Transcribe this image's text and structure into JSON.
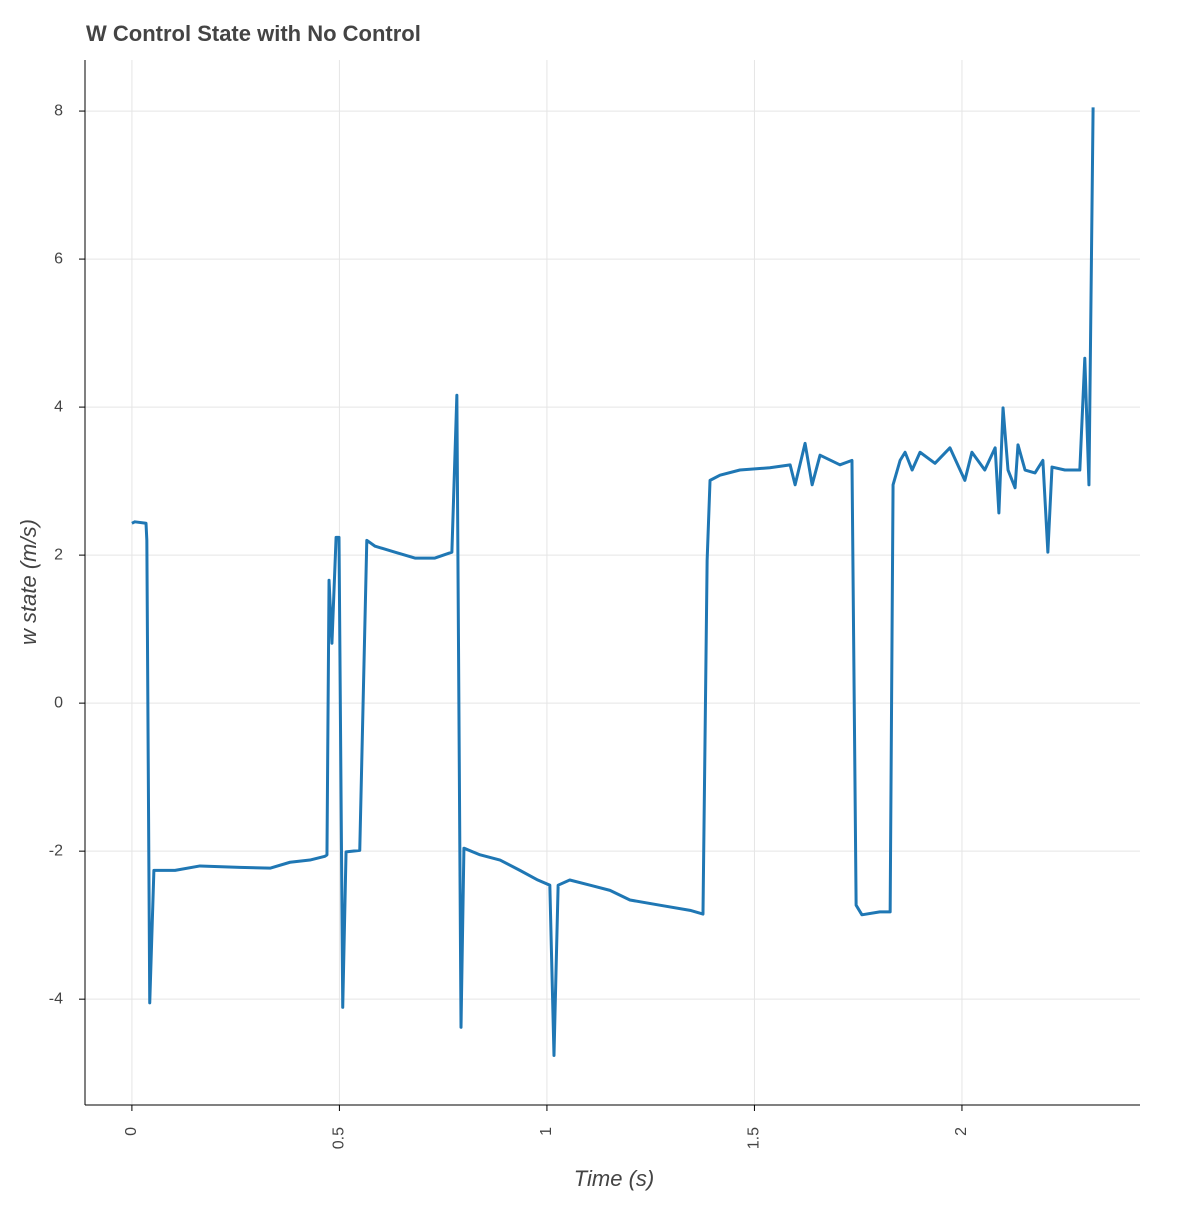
{
  "chart_data": {
    "type": "line",
    "title": "W Control State with No Control",
    "x_label": "Time (s)",
    "y_label": "w state (m/s)",
    "xlim": [
      -0.113,
      2.429
    ],
    "ylim": [
      -5.43,
      8.69
    ],
    "xticks": [
      0,
      0.5,
      1,
      1.5,
      2
    ],
    "yticks": [
      -4,
      -2,
      0,
      2,
      4,
      6,
      8
    ],
    "grid": true,
    "series": [
      {
        "color": "#1f77b4",
        "x": [
          0,
          0.007,
          0.034,
          0.036,
          0.043,
          0.053,
          0.104,
          0.164,
          0.26,
          0.333,
          0.381,
          0.429,
          0.465,
          0.47,
          0.475,
          0.482,
          0.492,
          0.499,
          0.508,
          0.516,
          0.549,
          0.566,
          0.586,
          0.634,
          0.682,
          0.73,
          0.771,
          0.783,
          0.793,
          0.8,
          0.839,
          0.887,
          0.935,
          0.978,
          1.007,
          1.017,
          1.027,
          1.055,
          1.104,
          1.152,
          1.2,
          1.272,
          1.345,
          1.376,
          1.386,
          1.393,
          1.417,
          1.465,
          1.537,
          1.586,
          1.598,
          1.622,
          1.639,
          1.658,
          1.706,
          1.735,
          1.745,
          1.759,
          1.802,
          1.827,
          1.834,
          1.851,
          1.863,
          1.88,
          1.899,
          1.935,
          1.971,
          2.007,
          2.024,
          2.055,
          2.08,
          2.089,
          2.099,
          2.111,
          2.128,
          2.135,
          2.152,
          2.176,
          2.195,
          2.207,
          2.217,
          2.248,
          2.284,
          2.296,
          2.306,
          2.316
        ],
        "values": [
          2.43,
          2.45,
          2.43,
          2.2,
          -4.05,
          -2.26,
          -2.26,
          -2.2,
          -2.22,
          -2.23,
          -2.15,
          -2.12,
          -2.07,
          -2.05,
          1.66,
          0.81,
          2.24,
          2.24,
          -4.11,
          -2.01,
          -1.99,
          2.2,
          2.12,
          2.04,
          1.96,
          1.96,
          2.04,
          4.16,
          -4.38,
          -1.96,
          -2.05,
          -2.12,
          -2.26,
          -2.39,
          -2.46,
          -4.76,
          -2.46,
          -2.39,
          -2.46,
          -2.53,
          -2.66,
          -2.73,
          -2.8,
          -2.85,
          1.93,
          3.01,
          3.08,
          3.15,
          3.18,
          3.22,
          2.95,
          3.51,
          2.95,
          3.35,
          3.22,
          3.28,
          -2.73,
          -2.86,
          -2.82,
          -2.82,
          2.95,
          3.28,
          3.39,
          3.15,
          3.39,
          3.24,
          3.45,
          3.01,
          3.39,
          3.15,
          3.45,
          2.57,
          3.99,
          3.15,
          2.91,
          3.49,
          3.15,
          3.11,
          3.28,
          2.04,
          3.19,
          3.15,
          3.15,
          4.66,
          2.95,
          8.05
        ]
      }
    ]
  }
}
